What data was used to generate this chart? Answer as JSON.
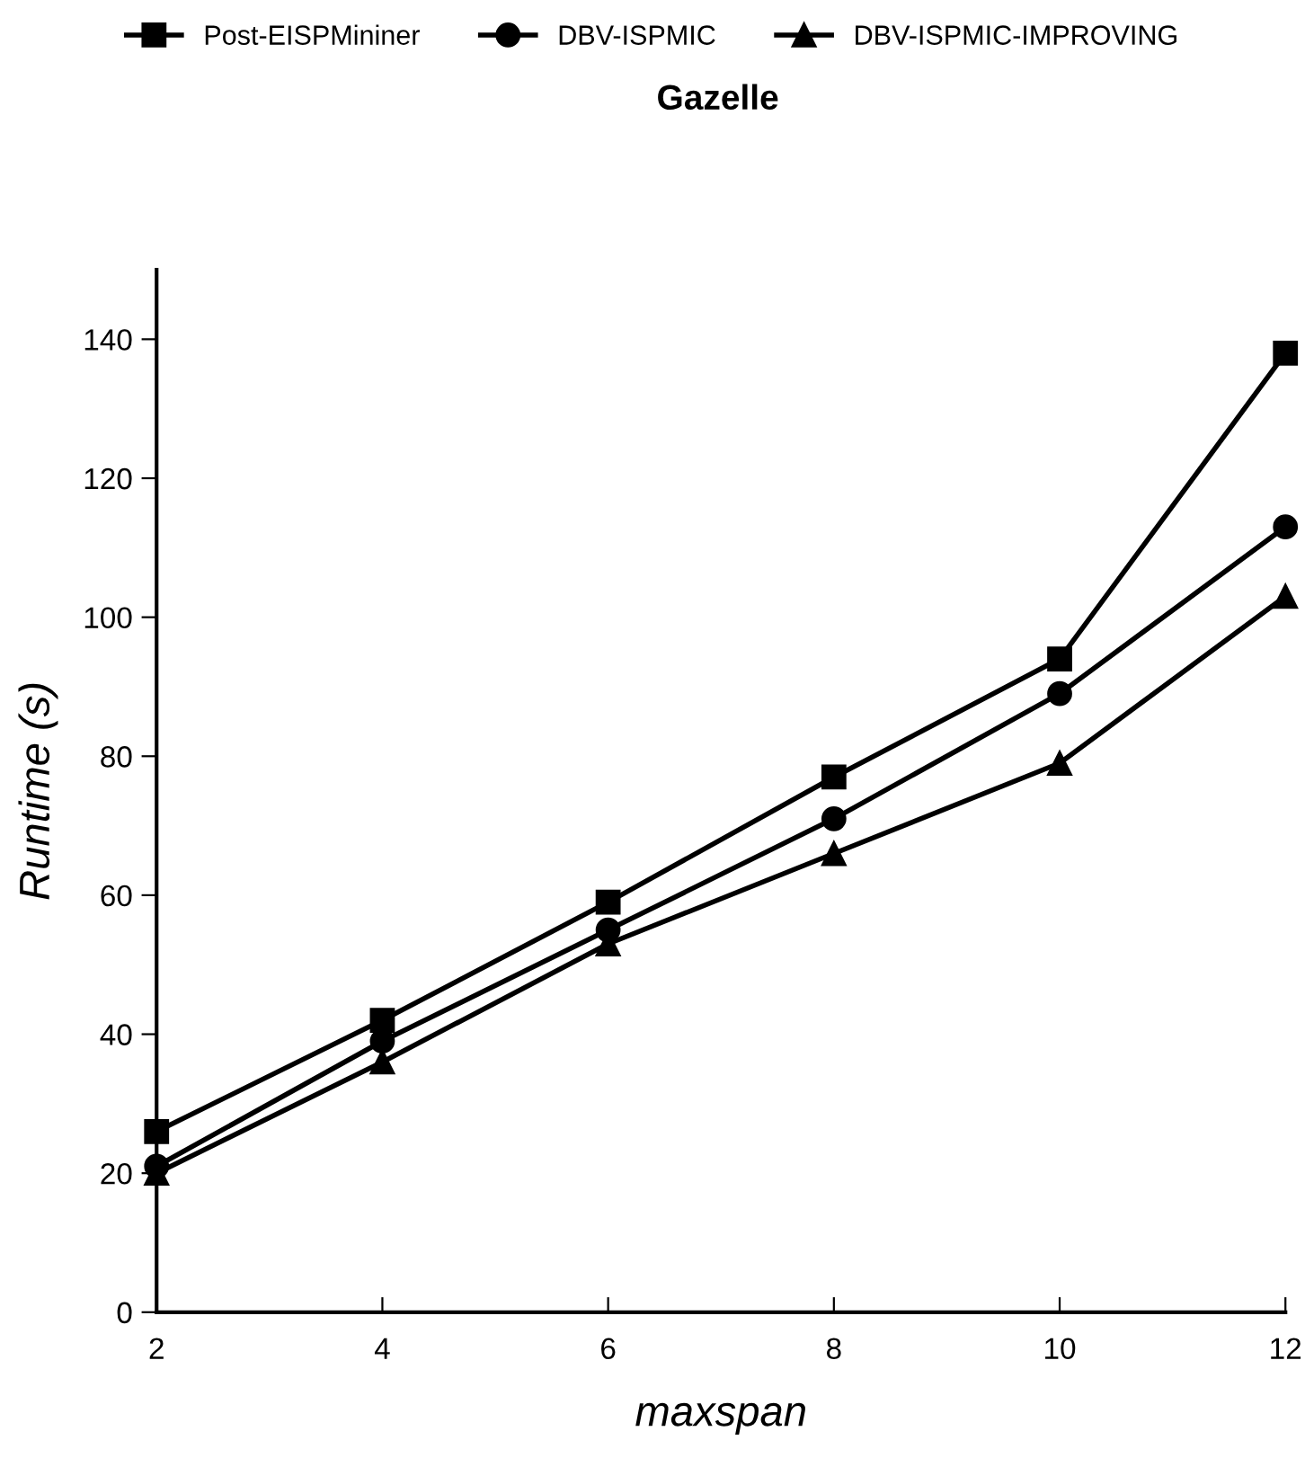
{
  "chart_data": {
    "type": "line",
    "title": "Gazelle",
    "xlabel": "maxspan",
    "ylabel": "Runtime (s)",
    "x": [
      2,
      4,
      6,
      8,
      10,
      12
    ],
    "series": [
      {
        "name": "Post-EISPMininer",
        "color": "#000000",
        "marker": "square",
        "values": [
          26,
          42,
          59,
          77,
          94,
          138
        ]
      },
      {
        "name": "DBV-ISPMIC",
        "color": "#000000",
        "marker": "circle",
        "values": [
          21,
          39,
          55,
          71,
          89,
          113
        ]
      },
      {
        "name": "DBV-ISPMIC-IMPROVING",
        "color": "#000000",
        "marker": "triangle",
        "values": [
          20,
          36,
          53,
          66,
          79,
          103
        ]
      }
    ],
    "xlim": [
      2,
      12
    ],
    "xticks": [
      2,
      4,
      6,
      8,
      10,
      12
    ],
    "ylim": [
      0,
      150
    ],
    "yticks": [
      0,
      20,
      40,
      60,
      80,
      100,
      120,
      140
    ],
    "grid": false,
    "legend": "top",
    "line_style": "solid"
  }
}
